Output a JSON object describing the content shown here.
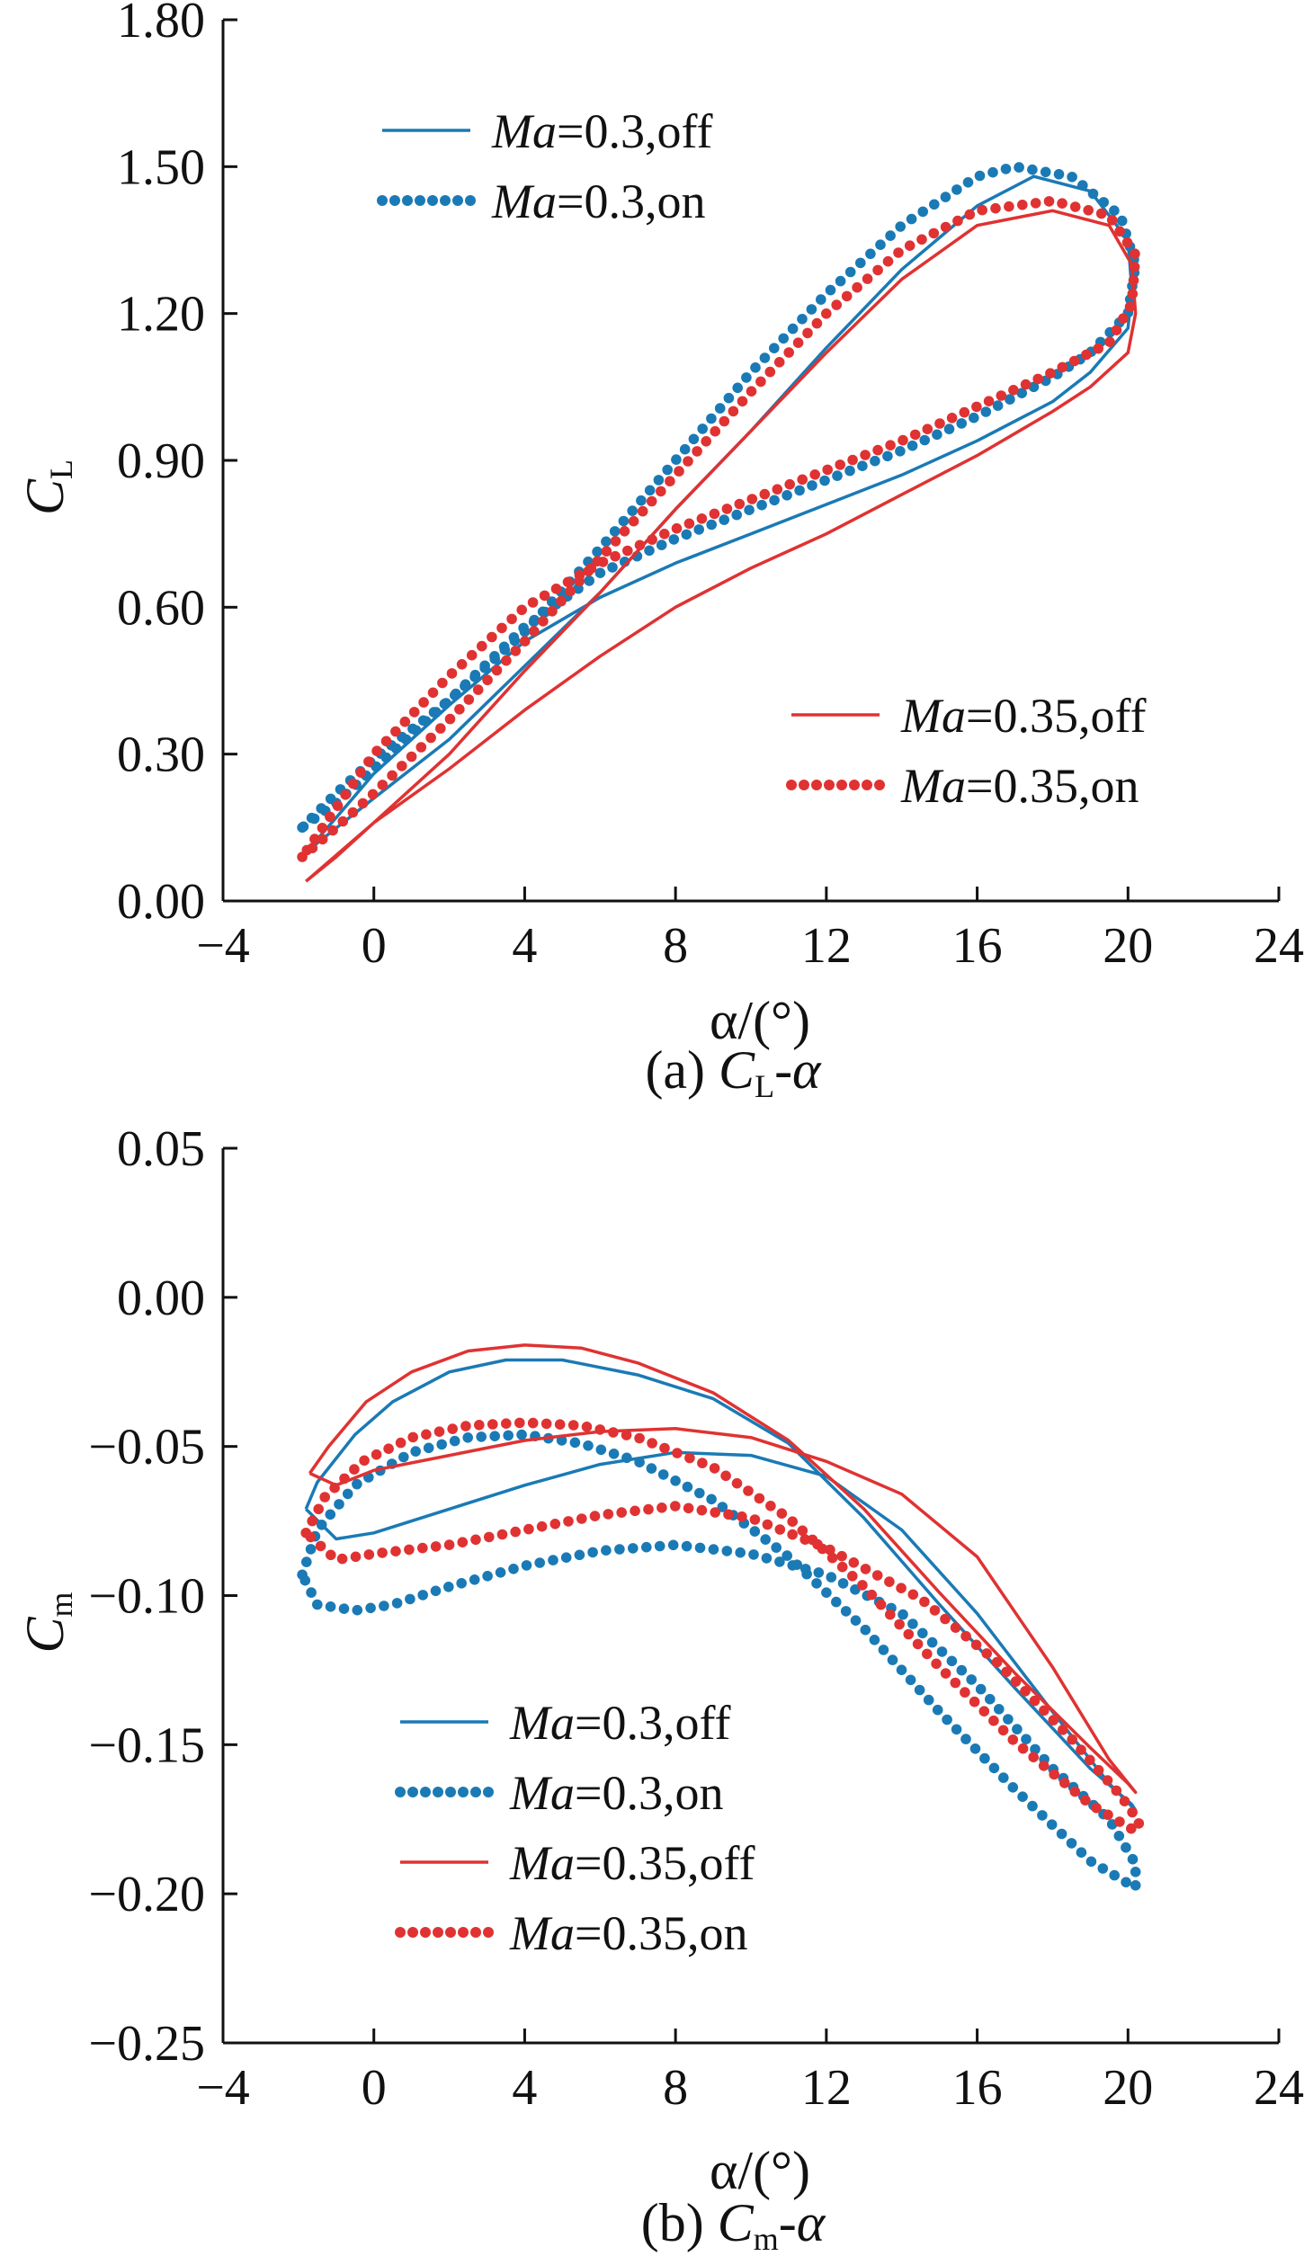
{
  "chart_data": [
    {
      "type": "line",
      "panel": "(a)",
      "caption": {
        "prefix": "(a) ",
        "var": "C",
        "sub": "L",
        "suffix": "-α"
      },
      "ylabel": {
        "var": "C",
        "sub": "L"
      },
      "xlabel": "α/(°)",
      "xlim": [
        -4,
        24
      ],
      "ylim": [
        0.0,
        1.8
      ],
      "xticks": [
        "−4",
        "0",
        "4",
        "8",
        "12",
        "16",
        "20",
        "24"
      ],
      "xtick_values": [
        -4,
        0,
        4,
        8,
        12,
        16,
        20,
        24
      ],
      "yticks": [
        "0.00",
        "0.30",
        "0.60",
        "0.90",
        "1.20",
        "1.50",
        "1.80"
      ],
      "ytick_values": [
        0.0,
        0.3,
        0.6,
        0.9,
        1.2,
        1.5,
        1.8
      ],
      "grid": false,
      "legend": [
        {
          "placement": "top-left",
          "entries": [
            0,
            1
          ]
        },
        {
          "placement": "lower-right",
          "entries": [
            2,
            3
          ]
        }
      ],
      "series": [
        {
          "name_var": "Ma",
          "name_rest": "=0.3,off",
          "color": "#1a7ab5",
          "style": "solid",
          "x": [
            -1.8,
            0,
            2,
            4,
            6,
            8,
            10,
            12,
            14,
            16,
            17.5,
            19,
            20,
            20.1,
            20,
            19,
            18,
            16,
            14,
            12,
            10,
            8,
            6,
            4,
            2,
            0,
            -1,
            -1.8
          ],
          "y": [
            0.1,
            0.21,
            0.33,
            0.48,
            0.63,
            0.8,
            0.96,
            1.13,
            1.29,
            1.42,
            1.48,
            1.45,
            1.35,
            1.25,
            1.17,
            1.08,
            1.02,
            0.94,
            0.87,
            0.81,
            0.75,
            0.69,
            0.62,
            0.53,
            0.4,
            0.26,
            0.17,
            0.1
          ]
        },
        {
          "name_var": "Ma",
          "name_rest": "=0.3,on",
          "color": "#1a7ab5",
          "style": "dotted",
          "x": [
            -1.9,
            -1,
            0,
            2,
            4,
            6,
            8,
            10,
            12,
            14,
            16,
            17,
            18.5,
            19.8,
            20.2,
            20,
            19,
            18,
            16,
            14,
            12,
            10,
            8,
            6,
            4,
            2,
            0,
            -1,
            -1.9
          ],
          "y": [
            0.15,
            0.22,
            0.29,
            0.41,
            0.55,
            0.72,
            0.9,
            1.08,
            1.24,
            1.38,
            1.48,
            1.5,
            1.48,
            1.4,
            1.3,
            1.2,
            1.12,
            1.07,
            0.99,
            0.92,
            0.86,
            0.8,
            0.74,
            0.67,
            0.56,
            0.41,
            0.27,
            0.2,
            0.15
          ]
        },
        {
          "name_var": "Ma",
          "name_rest": "=0.35,off",
          "color": "#e03232",
          "style": "solid",
          "x": [
            -1.8,
            0,
            2,
            4,
            6,
            8,
            10,
            12,
            14,
            16,
            18,
            19.5,
            20.1,
            20.2,
            20,
            19,
            18,
            16,
            14,
            12,
            10,
            8,
            6,
            4,
            2,
            0,
            -1,
            -1.8
          ],
          "y": [
            0.04,
            0.16,
            0.3,
            0.47,
            0.63,
            0.8,
            0.96,
            1.12,
            1.27,
            1.38,
            1.41,
            1.38,
            1.3,
            1.2,
            1.12,
            1.05,
            1.0,
            0.91,
            0.83,
            0.75,
            0.68,
            0.6,
            0.5,
            0.39,
            0.27,
            0.16,
            0.09,
            0.04
          ]
        },
        {
          "name_var": "Ma",
          "name_rest": "=0.35,on",
          "color": "#e03232",
          "style": "dotted",
          "x": [
            -1.9,
            -1,
            0,
            2,
            4,
            6,
            8,
            10,
            12,
            14,
            16,
            18,
            19.5,
            20.2,
            20.1,
            19.5,
            18,
            16,
            14,
            12,
            10,
            8,
            6,
            4,
            2,
            0,
            -1,
            -1.9
          ],
          "y": [
            0.09,
            0.15,
            0.22,
            0.37,
            0.53,
            0.7,
            0.87,
            1.04,
            1.2,
            1.33,
            1.41,
            1.43,
            1.4,
            1.32,
            1.22,
            1.14,
            1.08,
            1.01,
            0.94,
            0.88,
            0.82,
            0.76,
            0.69,
            0.6,
            0.46,
            0.3,
            0.19,
            0.09
          ]
        }
      ]
    },
    {
      "type": "line",
      "panel": "(b)",
      "caption": {
        "prefix": "(b) ",
        "var": "C",
        "sub": "m",
        "suffix": "-α"
      },
      "ylabel": {
        "var": "C",
        "sub": "m"
      },
      "xlabel": "α/(°)",
      "xlim": [
        -4,
        24
      ],
      "ylim": [
        -0.25,
        0.05
      ],
      "xticks": [
        "−4",
        "0",
        "4",
        "8",
        "12",
        "16",
        "20",
        "24"
      ],
      "xtick_values": [
        -4,
        0,
        4,
        8,
        12,
        16,
        20,
        24
      ],
      "yticks": [
        "−0.25",
        "−0.20",
        "−0.15",
        "−0.10",
        "−0.05",
        "0.00",
        "0.05"
      ],
      "ytick_values": [
        -0.25,
        -0.2,
        -0.15,
        -0.1,
        -0.05,
        0.0,
        0.05
      ],
      "grid": false,
      "legend": [
        {
          "placement": "bottom-left",
          "entries": [
            0,
            1,
            2,
            3
          ]
        }
      ],
      "series": [
        {
          "name_var": "Ma",
          "name_rest": "=0.3,off",
          "color": "#1a7ab5",
          "style": "solid",
          "x": [
            -1.8,
            -1.5,
            -0.5,
            0.5,
            2,
            3.5,
            5,
            7,
            9,
            11,
            13,
            15,
            17,
            19,
            20.1,
            20.2,
            19.5,
            18,
            16,
            14,
            12,
            10,
            8,
            6,
            4,
            2,
            0,
            -1,
            -1.8
          ],
          "y": [
            -0.071,
            -0.062,
            -0.046,
            -0.035,
            -0.025,
            -0.021,
            -0.021,
            -0.026,
            -0.034,
            -0.049,
            -0.074,
            -0.103,
            -0.131,
            -0.158,
            -0.17,
            -0.172,
            -0.163,
            -0.139,
            -0.106,
            -0.078,
            -0.06,
            -0.053,
            -0.052,
            -0.056,
            -0.063,
            -0.071,
            -0.079,
            -0.081,
            -0.071
          ]
        },
        {
          "name_var": "Ma",
          "name_rest": "=0.3,on",
          "color": "#1a7ab5",
          "style": "dotted",
          "x": [
            -1.9,
            -1.5,
            -0.5,
            1,
            2.5,
            4,
            5.5,
            7,
            9,
            11,
            13,
            15,
            17,
            19,
            20.2,
            20.2,
            19.5,
            18,
            16,
            14,
            12,
            10,
            8,
            6,
            4,
            2,
            0.5,
            -0.5,
            -1.5,
            -1.9
          ],
          "y": [
            -0.093,
            -0.078,
            -0.063,
            -0.052,
            -0.047,
            -0.046,
            -0.049,
            -0.055,
            -0.068,
            -0.087,
            -0.111,
            -0.139,
            -0.165,
            -0.189,
            -0.198,
            -0.19,
            -0.175,
            -0.158,
            -0.13,
            -0.106,
            -0.093,
            -0.086,
            -0.083,
            -0.085,
            -0.09,
            -0.097,
            -0.103,
            -0.105,
            -0.103,
            -0.093
          ]
        },
        {
          "name_var": "Ma",
          "name_rest": "=0.35,off",
          "color": "#e03232",
          "style": "solid",
          "x": [
            -1.7,
            -1.2,
            -0.2,
            1,
            2.5,
            4,
            5.5,
            7,
            9,
            11,
            13,
            15,
            17,
            19,
            20,
            20.2,
            19.5,
            18,
            16,
            14,
            12,
            10,
            8,
            6,
            4,
            2,
            0,
            -1,
            -1.7
          ],
          "y": [
            -0.059,
            -0.05,
            -0.035,
            -0.025,
            -0.018,
            -0.016,
            -0.017,
            -0.022,
            -0.032,
            -0.048,
            -0.071,
            -0.099,
            -0.126,
            -0.151,
            -0.163,
            -0.166,
            -0.155,
            -0.124,
            -0.087,
            -0.066,
            -0.055,
            -0.047,
            -0.044,
            -0.045,
            -0.048,
            -0.053,
            -0.058,
            -0.063,
            -0.059
          ]
        },
        {
          "name_var": "Ma",
          "name_rest": "=0.35,on",
          "color": "#e03232",
          "style": "dotted",
          "x": [
            -1.8,
            -1.3,
            -0.3,
            1,
            2.5,
            4,
            5.5,
            7,
            9,
            11,
            13,
            15,
            17,
            19,
            20.2,
            20.3,
            19.8,
            18.5,
            16.5,
            14.5,
            12,
            10,
            8,
            6,
            4,
            2,
            0,
            -1,
            -1.8
          ],
          "y": [
            -0.079,
            -0.067,
            -0.055,
            -0.047,
            -0.043,
            -0.042,
            -0.043,
            -0.047,
            -0.057,
            -0.074,
            -0.097,
            -0.124,
            -0.149,
            -0.17,
            -0.179,
            -0.176,
            -0.167,
            -0.148,
            -0.122,
            -0.101,
            -0.084,
            -0.074,
            -0.07,
            -0.073,
            -0.078,
            -0.083,
            -0.086,
            -0.088,
            -0.079
          ]
        }
      ]
    }
  ]
}
